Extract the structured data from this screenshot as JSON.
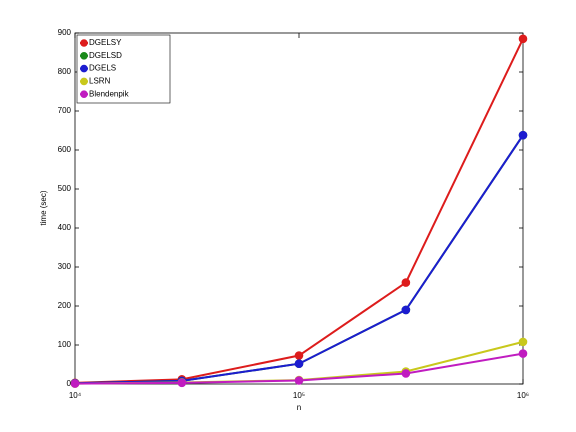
{
  "chart_data": {
    "type": "line",
    "xlabel": "n",
    "ylabel": "time (sec)",
    "x": [
      10000,
      30000,
      100000,
      300000,
      1000000
    ],
    "xscale": "log",
    "xlim": [
      10000,
      1000000
    ],
    "xticks": [
      {
        "value": 10000,
        "label": "10⁴"
      },
      {
        "value": 100000,
        "label": "10⁵"
      },
      {
        "value": 1000000,
        "label": "10⁶"
      }
    ],
    "ylim": [
      0,
      900
    ],
    "yticks": [
      0,
      100,
      200,
      300,
      400,
      500,
      600,
      700,
      800,
      900
    ],
    "grid": false,
    "legend": "upper left",
    "series": [
      {
        "name": "DGELSY",
        "color": "#dd1c1c",
        "values": [
          3,
          12,
          73,
          260,
          885
        ]
      },
      {
        "name": "DGELSD",
        "color": "#1a8a1a",
        "values": [
          2,
          8,
          52,
          190,
          638
        ]
      },
      {
        "name": "DGELS",
        "color": "#1c1cd0",
        "values": [
          2,
          8,
          52,
          190,
          638
        ]
      },
      {
        "name": "LSRN",
        "color": "#c8c81c",
        "values": [
          1,
          4,
          10,
          32,
          108
        ]
      },
      {
        "name": "Blendenpik",
        "color": "#c01cc0",
        "values": [
          1,
          3,
          9,
          27,
          78
        ]
      }
    ]
  }
}
